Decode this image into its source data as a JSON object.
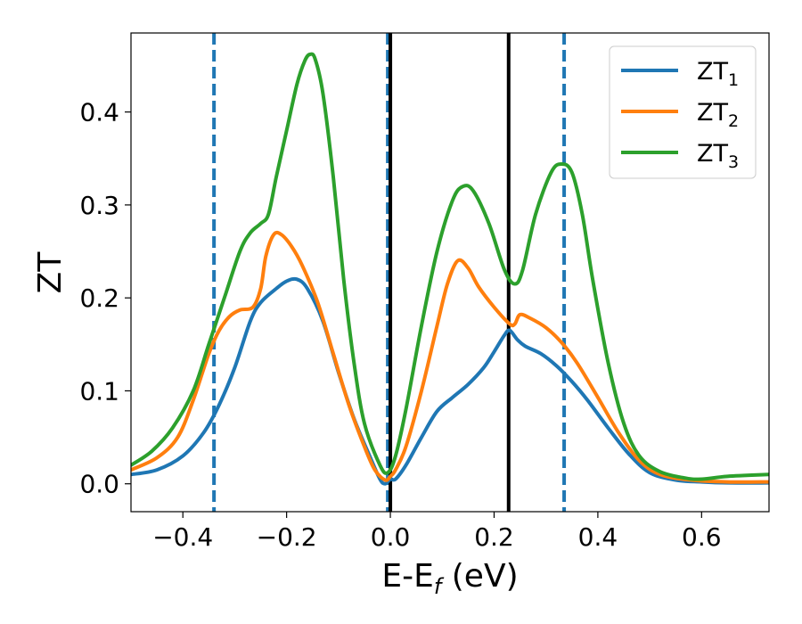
{
  "chart_data": {
    "type": "line",
    "xlabel": "E-E",
    "xlabel_sub": "f",
    "xlabel_unit": " (eV)",
    "ylabel": "ZT",
    "xlim": [
      -0.5,
      0.73
    ],
    "ylim": [
      -0.03,
      0.485
    ],
    "x_ticks": [
      -0.4,
      -0.2,
      0.0,
      0.2,
      0.4,
      0.6
    ],
    "x_tick_labels": [
      "−0.4",
      "−0.2",
      "0.0",
      "0.2",
      "0.4",
      "0.6"
    ],
    "y_ticks": [
      0.0,
      0.1,
      0.2,
      0.3,
      0.4
    ],
    "y_tick_labels": [
      "0.0",
      "0.1",
      "0.2",
      "0.3",
      "0.4"
    ],
    "grid": false,
    "legend_position": "top-right",
    "vlines": [
      {
        "x": -0.34,
        "style": "dashed",
        "color": "#1f77b4"
      },
      {
        "x": -0.005,
        "style": "dashed",
        "color": "#1f77b4"
      },
      {
        "x": 0.335,
        "style": "dashed",
        "color": "#1f77b4"
      },
      {
        "x": 0.0,
        "style": "solid",
        "color": "#000000"
      },
      {
        "x": 0.228,
        "style": "solid",
        "color": "#000000"
      }
    ],
    "series": [
      {
        "name": "ZT",
        "subscript": "1",
        "color": "#1f77b4",
        "points": [
          [
            -0.5,
            0.01
          ],
          [
            -0.45,
            0.015
          ],
          [
            -0.4,
            0.03
          ],
          [
            -0.36,
            0.055
          ],
          [
            -0.33,
            0.085
          ],
          [
            -0.3,
            0.125
          ],
          [
            -0.27,
            0.175
          ],
          [
            -0.25,
            0.195
          ],
          [
            -0.22,
            0.21
          ],
          [
            -0.2,
            0.218
          ],
          [
            -0.18,
            0.22
          ],
          [
            -0.16,
            0.21
          ],
          [
            -0.13,
            0.175
          ],
          [
            -0.1,
            0.12
          ],
          [
            -0.07,
            0.07
          ],
          [
            -0.04,
            0.03
          ],
          [
            -0.02,
            0.005
          ],
          [
            -0.01,
            0.0
          ],
          [
            0.0,
            0.005
          ],
          [
            0.01,
            0.005
          ],
          [
            0.03,
            0.02
          ],
          [
            0.06,
            0.05
          ],
          [
            0.09,
            0.078
          ],
          [
            0.12,
            0.093
          ],
          [
            0.15,
            0.107
          ],
          [
            0.18,
            0.125
          ],
          [
            0.2,
            0.142
          ],
          [
            0.22,
            0.16
          ],
          [
            0.23,
            0.165
          ],
          [
            0.245,
            0.155
          ],
          [
            0.26,
            0.148
          ],
          [
            0.29,
            0.14
          ],
          [
            0.32,
            0.127
          ],
          [
            0.35,
            0.11
          ],
          [
            0.38,
            0.09
          ],
          [
            0.42,
            0.06
          ],
          [
            0.46,
            0.032
          ],
          [
            0.5,
            0.012
          ],
          [
            0.55,
            0.004
          ],
          [
            0.6,
            0.002
          ],
          [
            0.65,
            0.001
          ],
          [
            0.73,
            0.001
          ]
        ]
      },
      {
        "name": "ZT",
        "subscript": "2",
        "color": "#ff7f0e",
        "points": [
          [
            -0.5,
            0.015
          ],
          [
            -0.45,
            0.028
          ],
          [
            -0.41,
            0.05
          ],
          [
            -0.38,
            0.09
          ],
          [
            -0.35,
            0.14
          ],
          [
            -0.33,
            0.165
          ],
          [
            -0.31,
            0.18
          ],
          [
            -0.29,
            0.187
          ],
          [
            -0.265,
            0.19
          ],
          [
            -0.25,
            0.21
          ],
          [
            -0.24,
            0.245
          ],
          [
            -0.225,
            0.268
          ],
          [
            -0.21,
            0.268
          ],
          [
            -0.19,
            0.255
          ],
          [
            -0.17,
            0.235
          ],
          [
            -0.14,
            0.195
          ],
          [
            -0.11,
            0.14
          ],
          [
            -0.08,
            0.085
          ],
          [
            -0.05,
            0.04
          ],
          [
            -0.03,
            0.015
          ],
          [
            -0.01,
            0.004
          ],
          [
            0.0,
            0.008
          ],
          [
            0.01,
            0.015
          ],
          [
            0.03,
            0.04
          ],
          [
            0.06,
            0.1
          ],
          [
            0.09,
            0.17
          ],
          [
            0.11,
            0.215
          ],
          [
            0.13,
            0.24
          ],
          [
            0.15,
            0.232
          ],
          [
            0.17,
            0.212
          ],
          [
            0.2,
            0.19
          ],
          [
            0.23,
            0.172
          ],
          [
            0.24,
            0.172
          ],
          [
            0.25,
            0.182
          ],
          [
            0.27,
            0.178
          ],
          [
            0.3,
            0.168
          ],
          [
            0.33,
            0.152
          ],
          [
            0.36,
            0.13
          ],
          [
            0.4,
            0.093
          ],
          [
            0.44,
            0.055
          ],
          [
            0.48,
            0.025
          ],
          [
            0.52,
            0.01
          ],
          [
            0.58,
            0.004
          ],
          [
            0.65,
            0.002
          ],
          [
            0.73,
            0.002
          ]
        ]
      },
      {
        "name": "ZT",
        "subscript": "3",
        "color": "#2ca02c",
        "points": [
          [
            -0.5,
            0.02
          ],
          [
            -0.46,
            0.035
          ],
          [
            -0.42,
            0.06
          ],
          [
            -0.38,
            0.1
          ],
          [
            -0.35,
            0.15
          ],
          [
            -0.32,
            0.2
          ],
          [
            -0.29,
            0.25
          ],
          [
            -0.27,
            0.27
          ],
          [
            -0.25,
            0.28
          ],
          [
            -0.235,
            0.29
          ],
          [
            -0.22,
            0.33
          ],
          [
            -0.2,
            0.38
          ],
          [
            -0.18,
            0.43
          ],
          [
            -0.165,
            0.455
          ],
          [
            -0.155,
            0.462
          ],
          [
            -0.145,
            0.457
          ],
          [
            -0.13,
            0.42
          ],
          [
            -0.11,
            0.33
          ],
          [
            -0.09,
            0.22
          ],
          [
            -0.07,
            0.13
          ],
          [
            -0.05,
            0.065
          ],
          [
            -0.02,
            0.02
          ],
          [
            -0.005,
            0.012
          ],
          [
            0.01,
            0.03
          ],
          [
            0.03,
            0.08
          ],
          [
            0.06,
            0.17
          ],
          [
            0.09,
            0.25
          ],
          [
            0.12,
            0.305
          ],
          [
            0.14,
            0.32
          ],
          [
            0.16,
            0.315
          ],
          [
            0.19,
            0.28
          ],
          [
            0.22,
            0.23
          ],
          [
            0.24,
            0.215
          ],
          [
            0.255,
            0.23
          ],
          [
            0.28,
            0.29
          ],
          [
            0.31,
            0.335
          ],
          [
            0.33,
            0.344
          ],
          [
            0.35,
            0.335
          ],
          [
            0.37,
            0.29
          ],
          [
            0.39,
            0.22
          ],
          [
            0.42,
            0.13
          ],
          [
            0.45,
            0.065
          ],
          [
            0.48,
            0.03
          ],
          [
            0.52,
            0.013
          ],
          [
            0.57,
            0.006
          ],
          [
            0.6,
            0.005
          ],
          [
            0.65,
            0.008
          ],
          [
            0.73,
            0.01
          ]
        ]
      }
    ]
  }
}
